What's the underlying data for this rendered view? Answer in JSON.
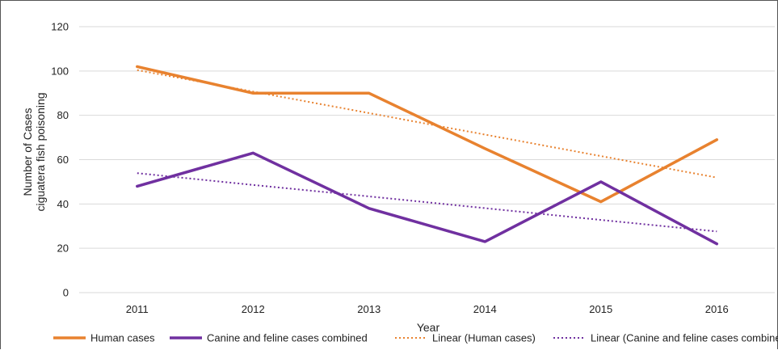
{
  "chart_data": {
    "type": "line",
    "title": "",
    "xlabel": "Year",
    "ylabel_lines": [
      "Number of Cases",
      "ciguatera fish poisoning"
    ],
    "categories": [
      "2011",
      "2012",
      "2013",
      "2014",
      "2015",
      "2016"
    ],
    "ylim": [
      0,
      120
    ],
    "yticks": [
      0,
      20,
      40,
      60,
      80,
      100,
      120
    ],
    "grid": true,
    "legend_position": "bottom",
    "series": [
      {
        "name": "Human cases",
        "values": [
          102,
          90,
          90,
          65,
          41,
          69
        ],
        "color": "#e8822f",
        "style": "solid"
      },
      {
        "name": "Canine and feline cases combined",
        "values": [
          48,
          63,
          38,
          23,
          50,
          22
        ],
        "color": "#7030a0",
        "style": "solid"
      },
      {
        "name": "Linear (Human cases)",
        "values": [
          100.4,
          90.7,
          81.0,
          71.3,
          61.6,
          51.9
        ],
        "color": "#e8822f",
        "style": "dotted"
      },
      {
        "name": "Linear (Canine and feline cases combined)",
        "values": [
          53.9,
          48.6,
          43.4,
          38.1,
          32.8,
          27.6
        ],
        "color": "#7030a0",
        "style": "dotted"
      }
    ]
  }
}
